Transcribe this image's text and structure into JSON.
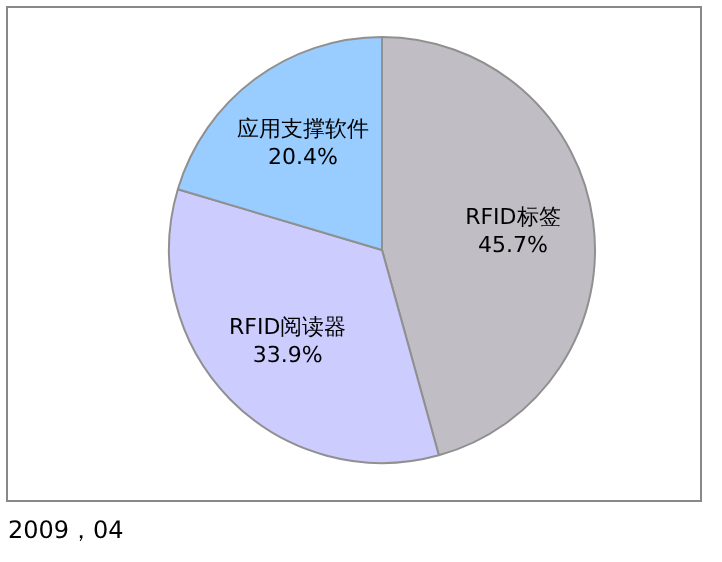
{
  "chart_data": {
    "type": "pie",
    "categories": [
      "RFID标签",
      "RFID阅读器",
      "应用支撑软件"
    ],
    "values": [
      45.7,
      33.9,
      20.4
    ],
    "colors": [
      "#c0bec4",
      "#ccccff",
      "#99ccff"
    ],
    "value_labels": [
      "45.7%",
      "33.9%",
      "20.4%"
    ],
    "legend": false,
    "annotations": [
      "2009，04"
    ]
  }
}
